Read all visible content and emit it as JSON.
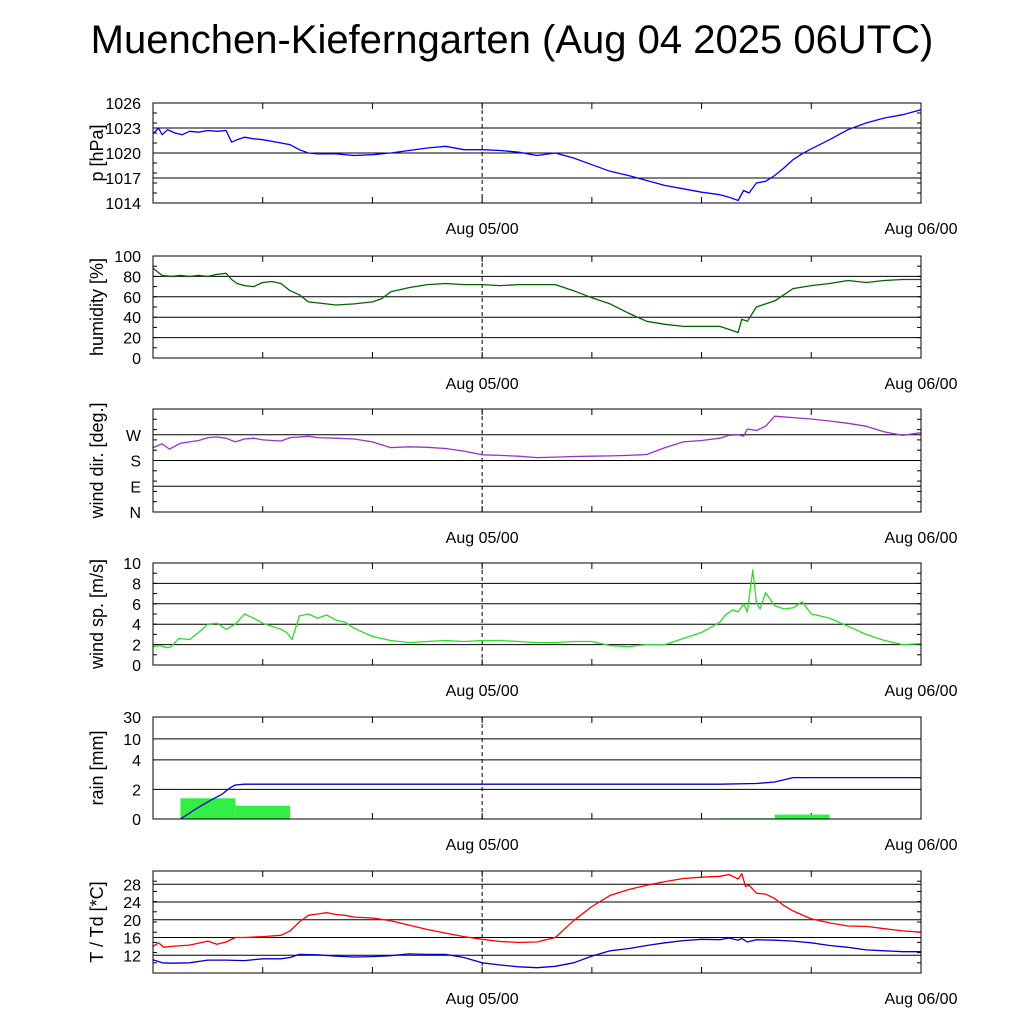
{
  "title": "Muenchen-Kieferngarten (Aug 04 2025 06UTC)",
  "chart_data": [
    {
      "type": "line",
      "ylabel": "p [hPa]",
      "ylim": [
        1014,
        1026
      ],
      "yticks": [
        "1014",
        "1017",
        "1020",
        "1023",
        "1026"
      ],
      "xlim": [
        0,
        42
      ],
      "xtick_labels": [
        {
          "x": 18,
          "label": "Aug 05/00"
        },
        {
          "x": 42,
          "label": "Aug 06/00"
        }
      ],
      "series": [
        {
          "color": "#0000ff",
          "x": [
            0,
            0.3,
            0.5,
            0.8,
            1.2,
            1.6,
            2,
            2.5,
            3,
            3.5,
            4,
            4.3,
            4.6,
            5,
            5.5,
            6,
            7,
            7.5,
            8,
            8.5,
            9,
            10,
            11,
            12,
            13,
            14,
            15,
            16,
            17,
            18,
            19,
            20,
            21,
            22,
            23,
            24,
            25,
            26,
            27,
            28,
            29,
            30,
            31,
            31.5,
            32,
            32.3,
            32.6,
            33,
            33.5,
            34,
            34.5,
            35,
            35.5,
            36,
            37,
            38,
            39,
            40,
            41,
            42
          ],
          "y": [
            1022.3,
            1023,
            1022.2,
            1022.8,
            1022.4,
            1022.2,
            1022.6,
            1022.5,
            1022.7,
            1022.6,
            1022.7,
            1021.3,
            1021.6,
            1021.9,
            1021.7,
            1021.6,
            1021.2,
            1021,
            1020.4,
            1020,
            1019.9,
            1019.9,
            1019.7,
            1019.8,
            1020,
            1020.3,
            1020.6,
            1020.8,
            1020.4,
            1020.4,
            1020.3,
            1020.1,
            1019.7,
            1020,
            1019.4,
            1018.6,
            1017.8,
            1017.3,
            1016.7,
            1016.1,
            1015.7,
            1015.3,
            1015,
            1014.7,
            1014.3,
            1015.5,
            1015.2,
            1016.4,
            1016.6,
            1017.3,
            1018.2,
            1019.2,
            1019.9,
            1020.5,
            1021.6,
            1022.8,
            1023.6,
            1024.2,
            1024.6,
            1025.2
          ]
        }
      ]
    },
    {
      "type": "line",
      "ylabel": "humidity [%]",
      "ylim": [
        0,
        100
      ],
      "yticks": [
        "0",
        "20",
        "40",
        "60",
        "80",
        "100"
      ],
      "xlim": [
        0,
        42
      ],
      "xtick_labels": [
        {
          "x": 18,
          "label": "Aug 05/00"
        },
        {
          "x": 42,
          "label": "Aug 06/00"
        }
      ],
      "series": [
        {
          "color": "#006400",
          "x": [
            0,
            0.5,
            1,
            1.5,
            2,
            2.5,
            3,
            3.5,
            4,
            4.3,
            4.6,
            5,
            5.5,
            6,
            6.5,
            7,
            7.5,
            8,
            8.5,
            9,
            10,
            11,
            12,
            12.5,
            13,
            14,
            15,
            16,
            17,
            18,
            19,
            20,
            21,
            22,
            23,
            24,
            25,
            26,
            27,
            28,
            29,
            30,
            31,
            31.5,
            32,
            32.2,
            32.5,
            33,
            33.5,
            34,
            34.5,
            35,
            36,
            37,
            38,
            39,
            40,
            41,
            42
          ],
          "y": [
            88,
            81,
            80,
            81,
            80,
            81,
            80,
            82,
            83,
            77,
            73,
            71,
            70,
            74,
            75,
            73,
            66,
            62,
            55,
            54,
            52,
            53,
            55,
            58,
            65,
            69,
            72,
            73,
            72,
            72,
            71,
            72,
            72,
            72,
            66,
            59,
            53,
            44,
            36,
            33,
            31,
            31,
            31,
            28,
            25,
            38,
            36,
            50,
            53,
            56,
            62,
            68,
            71,
            73,
            76,
            74,
            76,
            77,
            77
          ]
        }
      ]
    },
    {
      "type": "line",
      "ylabel": "wind dir. [deg.]",
      "ylim": [
        0,
        360
      ],
      "yticks": [
        "N",
        "E",
        "S",
        "W"
      ],
      "ytick_values": [
        0,
        90,
        180,
        270
      ],
      "xlim": [
        0,
        42
      ],
      "xtick_labels": [
        {
          "x": 18,
          "label": "Aug 05/00"
        },
        {
          "x": 42,
          "label": "Aug 06/00"
        }
      ],
      "series": [
        {
          "color": "#9932cc",
          "x": [
            0,
            0.5,
            0.9,
            1.5,
            2,
            2.5,
            3,
            3.5,
            4,
            4.5,
            5,
            5.5,
            6,
            7,
            7.5,
            8,
            8.5,
            9,
            10,
            11,
            12,
            13,
            14,
            15,
            16,
            17,
            18,
            19,
            20,
            21,
            22,
            23,
            24,
            25,
            26,
            27,
            28,
            29,
            30,
            31,
            31.5,
            32,
            32.3,
            32.5,
            33,
            33.5,
            34,
            35,
            36,
            37,
            38,
            39,
            40,
            41,
            42
          ],
          "y": [
            225,
            238,
            220,
            240,
            245,
            250,
            260,
            262,
            258,
            245,
            255,
            258,
            252,
            248,
            260,
            262,
            265,
            260,
            258,
            255,
            245,
            225,
            228,
            226,
            222,
            213,
            200,
            198,
            195,
            190,
            192,
            194,
            195,
            196,
            198,
            201,
            225,
            245,
            250,
            258,
            268,
            270,
            265,
            290,
            285,
            300,
            335,
            330,
            325,
            318,
            310,
            300,
            280,
            268,
            277
          ]
        }
      ]
    },
    {
      "type": "line",
      "ylabel": "wind sp. [m/s]",
      "ylim": [
        0,
        10
      ],
      "yticks": [
        "0",
        "2",
        "4",
        "6",
        "8",
        "10"
      ],
      "xlim": [
        0,
        42
      ],
      "xtick_labels": [
        {
          "x": 18,
          "label": "Aug 05/00"
        },
        {
          "x": 42,
          "label": "Aug 06/00"
        }
      ],
      "series": [
        {
          "color": "#2cdc2c",
          "x": [
            0,
            0.4,
            0.8,
            1,
            1.4,
            2,
            2.5,
            3,
            3.5,
            4,
            4.5,
            5,
            5.5,
            6,
            7,
            7.3,
            7.6,
            8,
            8.5,
            9,
            9.5,
            10,
            10.5,
            11,
            12,
            13,
            14,
            15,
            16,
            17,
            18,
            19,
            20,
            21,
            22,
            23,
            24,
            25,
            26,
            27,
            28,
            29,
            30,
            31,
            31.3,
            31.7,
            32,
            32.3,
            32.5,
            32.8,
            33,
            33.2,
            33.5,
            34,
            34.5,
            35,
            35.5,
            36,
            36.5,
            37,
            38,
            39,
            40,
            41,
            42
          ],
          "y": [
            1.8,
            1.9,
            1.7,
            1.8,
            2.6,
            2.5,
            3.2,
            4,
            4.1,
            3.5,
            4,
            5,
            4.6,
            4.1,
            3.5,
            3.2,
            2.5,
            4.8,
            5,
            4.6,
            4.9,
            4.4,
            4.2,
            3.6,
            2.8,
            2.4,
            2.2,
            2.3,
            2.4,
            2.3,
            2.4,
            2.4,
            2.3,
            2.2,
            2.2,
            2.3,
            2.3,
            1.9,
            1.8,
            2,
            2,
            2.6,
            3.2,
            4.2,
            4.9,
            5.4,
            5.2,
            6,
            5.2,
            9.3,
            6.1,
            5.5,
            7.1,
            5.8,
            5.5,
            5.6,
            6.2,
            5,
            4.8,
            4.6,
            3.8,
            3,
            2.4,
            2,
            2.1
          ]
        }
      ]
    },
    {
      "type": "area",
      "ylabel": "rain [mm]",
      "yticks": [
        "0",
        "2",
        "4",
        "10",
        "30"
      ],
      "ytick_values": [
        0,
        2,
        4,
        10,
        30
      ],
      "xlim": [
        0,
        42
      ],
      "xtick_labels": [
        {
          "x": 18,
          "label": "Aug 05/00"
        },
        {
          "x": 42,
          "label": "Aug 06/00"
        }
      ],
      "bars": {
        "color": "#33ee44",
        "x0": [
          1.5,
          4.5,
          31,
          34
        ],
        "x1": [
          4.5,
          7.5,
          34,
          37
        ],
        "values": [
          1.4,
          0.9,
          0.05,
          0.3
        ]
      },
      "series": [
        {
          "color": "#0000cc",
          "x": [
            1.5,
            2.5,
            3.2,
            3.8,
            4.2,
            4.5,
            5,
            10,
            20,
            31,
            33,
            34,
            35,
            42
          ],
          "y": [
            0,
            0.8,
            1.3,
            1.7,
            2.1,
            2.3,
            2.35,
            2.35,
            2.35,
            2.35,
            2.4,
            2.5,
            2.8,
            2.8
          ]
        }
      ]
    },
    {
      "type": "line",
      "ylabel": "T / Td [*C]",
      "ylim": [
        8,
        31
      ],
      "yticks": [
        "12",
        "16",
        "20",
        "24",
        "28"
      ],
      "xlim": [
        0,
        42
      ],
      "xtick_labels": [
        {
          "x": 18,
          "label": "Aug 05/00"
        },
        {
          "x": 42,
          "label": "Aug 06/00"
        }
      ],
      "series": [
        {
          "name": "T",
          "color": "#ff0000",
          "x": [
            0,
            0.3,
            0.6,
            1,
            2,
            3,
            3.5,
            4,
            4.5,
            5,
            6,
            7,
            7.5,
            8,
            8.5,
            9,
            9.5,
            10,
            10.5,
            11,
            12,
            13,
            14,
            15,
            16,
            17,
            18,
            19,
            20,
            21,
            22,
            23,
            24,
            25,
            26,
            27,
            28,
            29,
            30,
            31,
            31.5,
            32,
            32.2,
            32.4,
            32.6,
            33,
            33.5,
            34,
            34.5,
            35,
            36,
            37,
            38,
            39,
            40,
            41,
            42
          ],
          "y": [
            14,
            14.8,
            13.8,
            14,
            14.3,
            15.2,
            14.5,
            15,
            16,
            16,
            16.2,
            16.5,
            17.5,
            19.5,
            21,
            21.3,
            21.6,
            21.2,
            21,
            20.6,
            20.4,
            19.8,
            18.8,
            17.8,
            17,
            16.2,
            15.6,
            15.1,
            14.9,
            15,
            16,
            19.8,
            23,
            25.5,
            26.8,
            27.8,
            28.6,
            29.3,
            29.6,
            29.8,
            30.2,
            29.2,
            30.4,
            27.5,
            27.8,
            26,
            25.8,
            24.8,
            23.2,
            22,
            20.2,
            19.3,
            18.6,
            18.5,
            18,
            17.5,
            17.2
          ]
        },
        {
          "name": "Td",
          "color": "#0000cc",
          "x": [
            0,
            0.5,
            1,
            2,
            3,
            4,
            5,
            6,
            7,
            7.5,
            8,
            9,
            10,
            11,
            12,
            13,
            14,
            15,
            16,
            17,
            18,
            19,
            20,
            21,
            22,
            23,
            24,
            25,
            26,
            27,
            28,
            29,
            30,
            31,
            31.5,
            32,
            32.2,
            32.5,
            33,
            34,
            35,
            36,
            37,
            38,
            39,
            40,
            41,
            42
          ],
          "y": [
            11,
            10.3,
            10.2,
            10.3,
            10.9,
            10.9,
            10.8,
            11.2,
            11.2,
            11.5,
            12.2,
            12.1,
            11.8,
            11.6,
            11.7,
            11.9,
            12.3,
            12.2,
            12.2,
            11.5,
            10.3,
            9.8,
            9.4,
            9.2,
            9.5,
            10.3,
            11.8,
            13,
            13.5,
            14.2,
            14.8,
            15.3,
            15.6,
            15.5,
            15.9,
            15.4,
            15.8,
            15,
            15.5,
            15.4,
            15.2,
            14.8,
            14.2,
            13.8,
            13.2,
            13,
            12.8,
            12.8
          ]
        }
      ]
    }
  ]
}
